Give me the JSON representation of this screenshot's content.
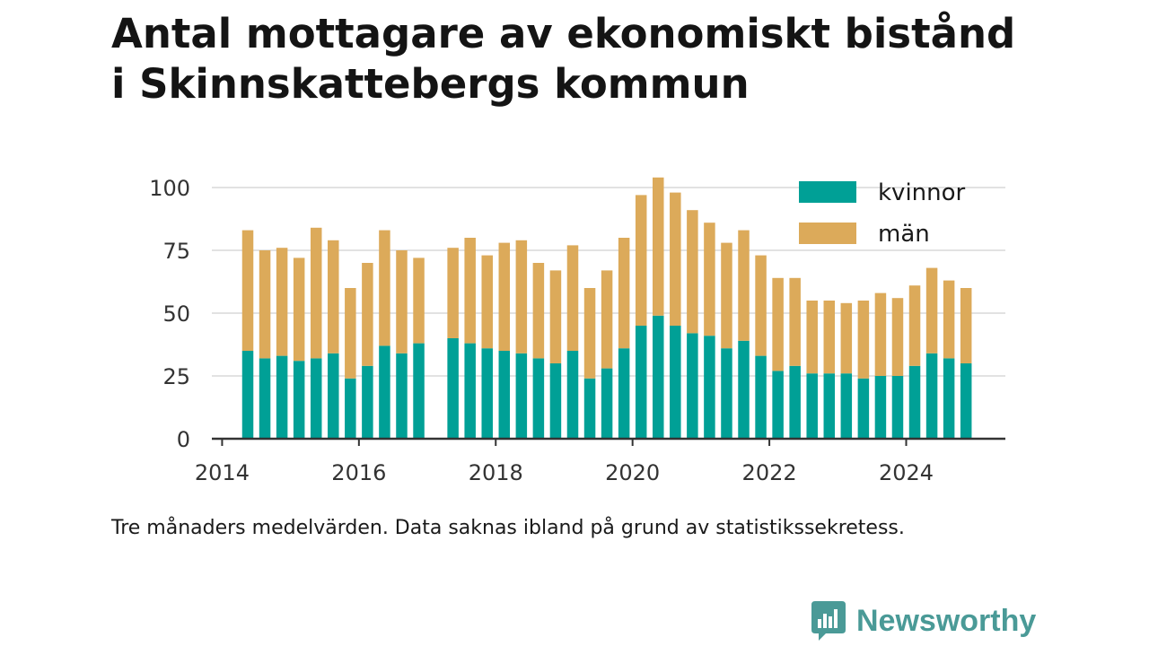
{
  "title_line1": "Antal mottagare av ekonomiskt bistånd",
  "title_line2": "i Skinnskattebergs kommun",
  "caption": "Tre månaders medelvärden. Data saknas ibland på grund av statistikssekretess.",
  "brand": {
    "name": "Newsworthy",
    "icon": "newsworthy-logo-icon",
    "color": "#4a9a97"
  },
  "chart_data": {
    "type": "bar",
    "stacked": true,
    "title": "Antal mottagare av ekonomiskt bistånd i Skinnskattebergs kommun",
    "xlim": [
      2013.85,
      2025.45
    ],
    "ylim": [
      0,
      105
    ],
    "yticks": [
      0,
      25,
      50,
      75,
      100
    ],
    "xticks": [
      2014,
      2016,
      2018,
      2020,
      2022,
      2024
    ],
    "grid": true,
    "legend_position": "top-right",
    "series": [
      {
        "name": "kvinnor",
        "color": "#00a096",
        "x": [
          2014.375,
          2014.625,
          2014.875,
          2015.125,
          2015.375,
          2015.625,
          2015.875,
          2016.125,
          2016.375,
          2016.625,
          2016.875,
          2017.375,
          2017.625,
          2017.875,
          2018.125,
          2018.375,
          2018.625,
          2018.875,
          2019.125,
          2019.375,
          2019.625,
          2019.875,
          2020.125,
          2020.375,
          2020.625,
          2020.875,
          2021.125,
          2021.375,
          2021.625,
          2021.875,
          2022.125,
          2022.375,
          2022.625,
          2022.875,
          2023.125,
          2023.375,
          2023.625,
          2023.875,
          2024.125,
          2024.375,
          2024.625,
          2024.875
        ],
        "values": [
          35,
          32,
          33,
          31,
          32,
          34,
          24,
          29,
          37,
          34,
          38,
          40,
          38,
          36,
          35,
          34,
          32,
          30,
          35,
          24,
          28,
          36,
          45,
          49,
          45,
          42,
          41,
          36,
          39,
          33,
          27,
          29,
          26,
          26,
          26,
          24,
          25,
          25,
          29,
          34,
          32,
          30
        ]
      },
      {
        "name": "män",
        "color": "#dcaa5a",
        "x": [
          2014.375,
          2014.625,
          2014.875,
          2015.125,
          2015.375,
          2015.625,
          2015.875,
          2016.125,
          2016.375,
          2016.625,
          2016.875,
          2017.375,
          2017.625,
          2017.875,
          2018.125,
          2018.375,
          2018.625,
          2018.875,
          2019.125,
          2019.375,
          2019.625,
          2019.875,
          2020.125,
          2020.375,
          2020.625,
          2020.875,
          2021.125,
          2021.375,
          2021.625,
          2021.875,
          2022.125,
          2022.375,
          2022.625,
          2022.875,
          2023.125,
          2023.375,
          2023.625,
          2023.875,
          2024.125,
          2024.375,
          2024.625,
          2024.875
        ],
        "values": [
          48,
          43,
          43,
          41,
          52,
          45,
          36,
          41,
          46,
          41,
          34,
          36,
          42,
          37,
          43,
          45,
          38,
          37,
          42,
          36,
          39,
          44,
          52,
          55,
          53,
          49,
          45,
          42,
          44,
          40,
          37,
          35,
          29,
          29,
          28,
          31,
          33,
          31,
          32,
          34,
          31,
          30
        ]
      }
    ]
  }
}
